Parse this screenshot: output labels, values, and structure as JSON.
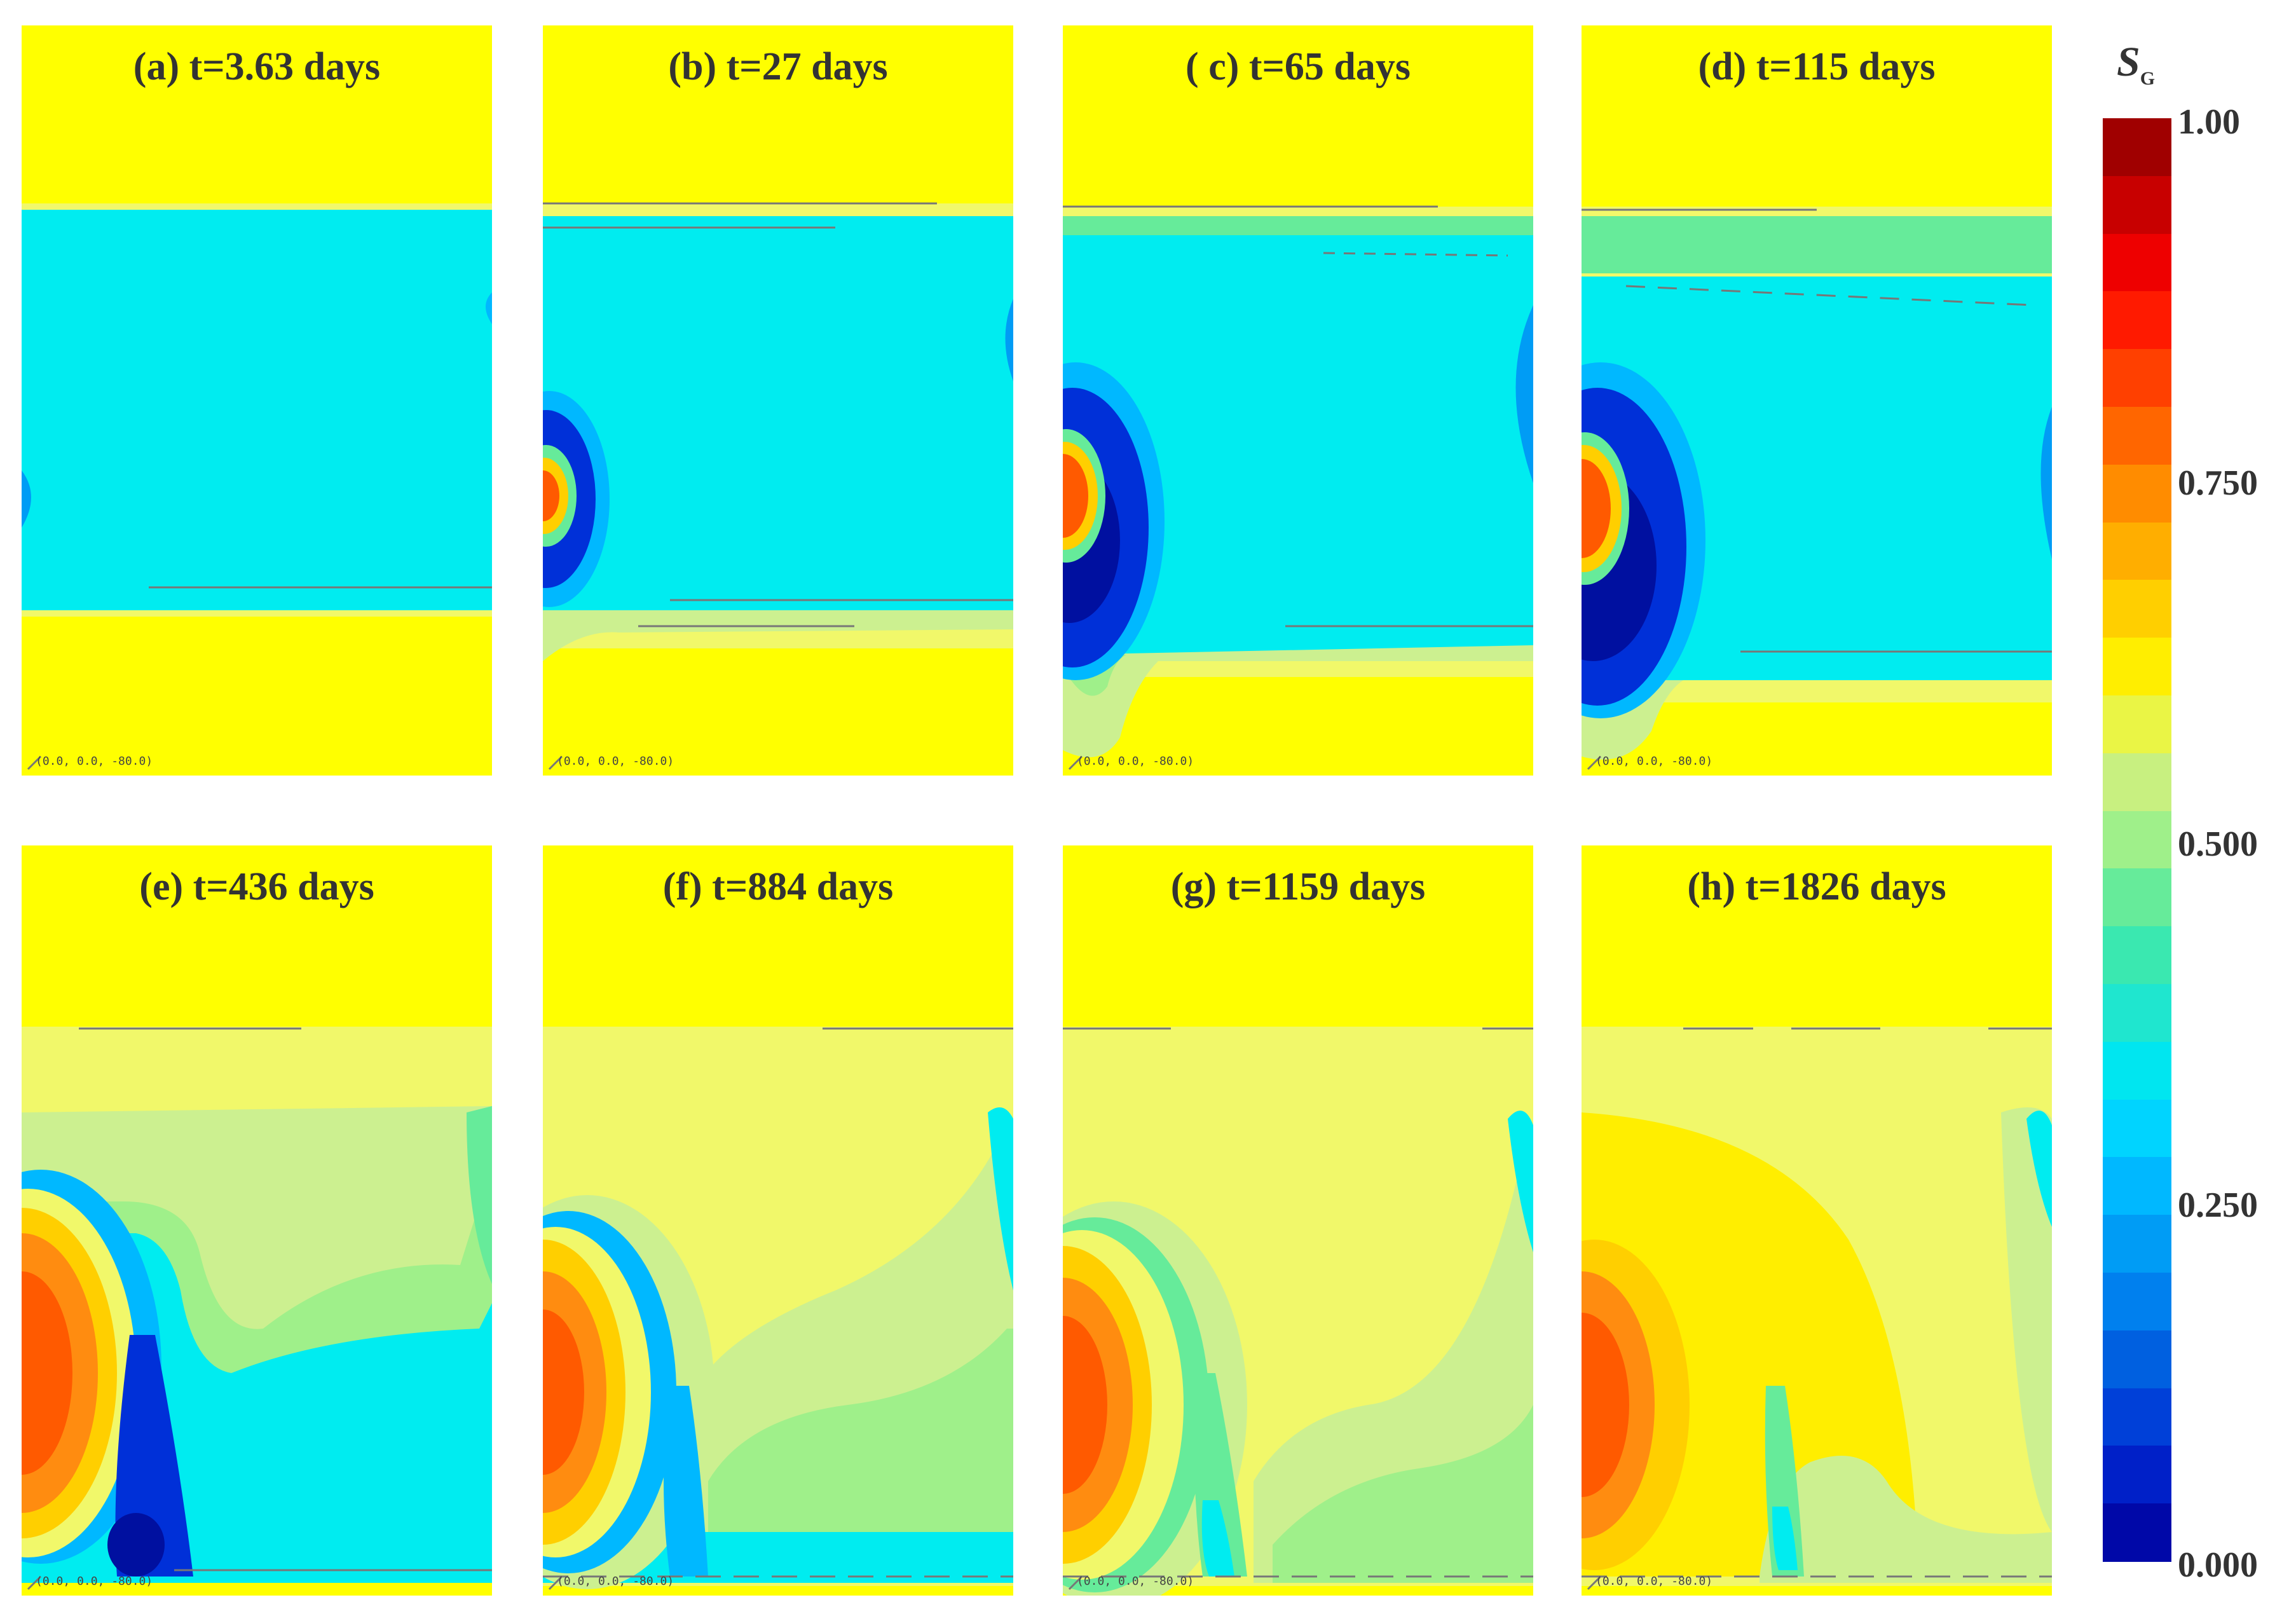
{
  "panels": [
    {
      "id": "a",
      "title": "(a) t=3.63 days",
      "coord_label": "(0.0, 0.0, -80.0)"
    },
    {
      "id": "b",
      "title": "(b) t=27 days",
      "coord_label": "(0.0, 0.0, -80.0)"
    },
    {
      "id": "c",
      "title": "( c) t=65 days",
      "coord_label": "(0.0, 0.0, -80.0)"
    },
    {
      "id": "d",
      "title": "(d) t=115 days",
      "coord_label": "(0.0, 0.0, -80.0)"
    },
    {
      "id": "e",
      "title": "(e) t=436 days",
      "coord_label": "(0.0, 0.0, -80.0)"
    },
    {
      "id": "f",
      "title": "(f) t=884 days",
      "coord_label": "(0.0, 0.0, -80.0)"
    },
    {
      "id": "g",
      "title": "(g) t=1159 days",
      "coord_label": "(0.0, 0.0, -80.0)"
    },
    {
      "id": "h",
      "title": "(h) t=1826 days",
      "coord_label": "(0.0, 0.0, -80.0)"
    }
  ],
  "colorbar": {
    "symbol": "S",
    "subscript": "G",
    "ticks": [
      "1.00",
      "0.750",
      "0.500",
      "0.250",
      "0.000"
    ],
    "colors": [
      "#a00000",
      "#c80000",
      "#ee0000",
      "#ff1a00",
      "#ff4000",
      "#ff6600",
      "#ff8c00",
      "#ffae00",
      "#ffcf00",
      "#ffee00",
      "#eaf545",
      "#c8f080",
      "#9ff08a",
      "#66eb9a",
      "#3ae8b0",
      "#1fe6cf",
      "#00e6f0",
      "#00d4ff",
      "#00b8ff",
      "#009cf5",
      "#0080ee",
      "#0060e0",
      "#0040d8",
      "#0020c8",
      "#0008a8"
    ]
  },
  "colors": {
    "background_gas": "#ffff00",
    "aquifer": "#00ecf0",
    "light_yellow": "#f1f86a",
    "pale_green": "#ccf090",
    "green": "#a8ec9a",
    "orange": "#ff8c10",
    "red_orange": "#ff5a00",
    "blue": "#0030d8",
    "dark_blue": "#0010a0"
  }
}
